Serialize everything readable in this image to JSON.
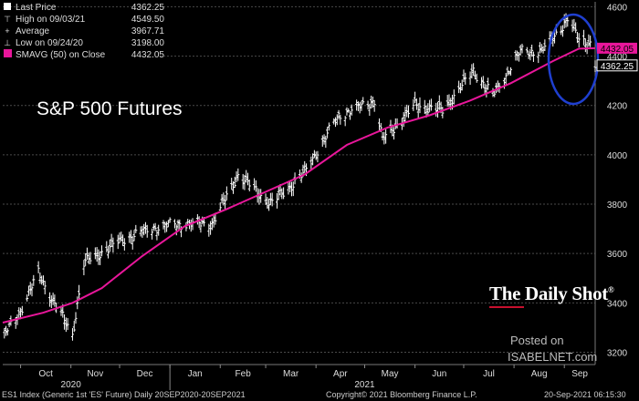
{
  "legend": {
    "items": [
      {
        "label": "Last Price",
        "value": "4362.25"
      },
      {
        "label": "High on 09/03/21",
        "value": "4549.50"
      },
      {
        "label": "Average",
        "value": "3967.71"
      },
      {
        "label": "Low on 09/24/20",
        "value": "3198.00"
      },
      {
        "label": "SMAVG (50)  on Close",
        "value": "4432.05"
      }
    ]
  },
  "subtitle": "S&P 500 Futures",
  "brand": "The Daily Shot",
  "brand_mark": "®",
  "posted_line1": "Posted on",
  "posted_line2": "ISABELNET.com",
  "footer": {
    "left": "ES1 Index (Generic 1st 'ES' Future)  Daily 20SEP2020-20SEP2021",
    "center": "Copyright© 2021 Bloomberg Finance L.P.",
    "right": "20-Sep-2021 06:15:30"
  },
  "colors": {
    "background": "#000000",
    "price_bars": "#ffffff",
    "moving_average": "#e8169a",
    "highlight_ellipse": "#1f3fcf"
  },
  "chart_data": {
    "type": "line",
    "ylim": [
      3150,
      4620
    ],
    "y_ticks": [
      3200,
      3400,
      3600,
      3800,
      4000,
      4200,
      4400,
      4600
    ],
    "x_ticks": [
      "Oct",
      "Nov",
      "Dec",
      "Jan",
      "Feb",
      "Mar",
      "Apr",
      "May",
      "Jun",
      "Jul",
      "Aug",
      "Sep"
    ],
    "year_labels": [
      "2020",
      "2021"
    ],
    "last_price_tag": "4362.25",
    "ma_tag": "4432.05",
    "series": [
      {
        "name": "Last Price",
        "kind": "ohlc",
        "x": [
          "2020-09-20",
          "2020-10-01",
          "2020-10-12",
          "2020-10-20",
          "2020-11-02",
          "2020-11-09",
          "2020-12-01",
          "2020-12-20",
          "2021-01-04",
          "2021-01-27",
          "2021-02-12",
          "2021-03-04",
          "2021-03-24",
          "2021-04-15",
          "2021-05-07",
          "2021-05-12",
          "2021-06-01",
          "2021-06-18",
          "2021-07-07",
          "2021-07-19",
          "2021-08-05",
          "2021-08-18",
          "2021-09-03",
          "2021-09-10",
          "2021-09-17",
          "2021-09-20"
        ],
        "values": [
          3260,
          3370,
          3520,
          3420,
          3270,
          3560,
          3650,
          3700,
          3720,
          3720,
          3920,
          3800,
          3920,
          4160,
          4220,
          4060,
          4200,
          4180,
          4340,
          4240,
          4420,
          4420,
          4549,
          4470,
          4450,
          4362
        ]
      },
      {
        "name": "SMAVG (50)  on Close",
        "kind": "line",
        "x": [
          "2020-09-20",
          "2020-10-15",
          "2020-11-02",
          "2020-11-20",
          "2020-12-15",
          "2021-01-10",
          "2021-02-05",
          "2021-03-01",
          "2021-03-25",
          "2021-04-20",
          "2021-05-15",
          "2021-06-10",
          "2021-07-05",
          "2021-07-30",
          "2021-08-25",
          "2021-09-10",
          "2021-09-20"
        ],
        "values": [
          3320,
          3360,
          3400,
          3460,
          3590,
          3710,
          3780,
          3850,
          3920,
          4040,
          4110,
          4160,
          4220,
          4290,
          4380,
          4430,
          4432
        ]
      }
    ]
  }
}
